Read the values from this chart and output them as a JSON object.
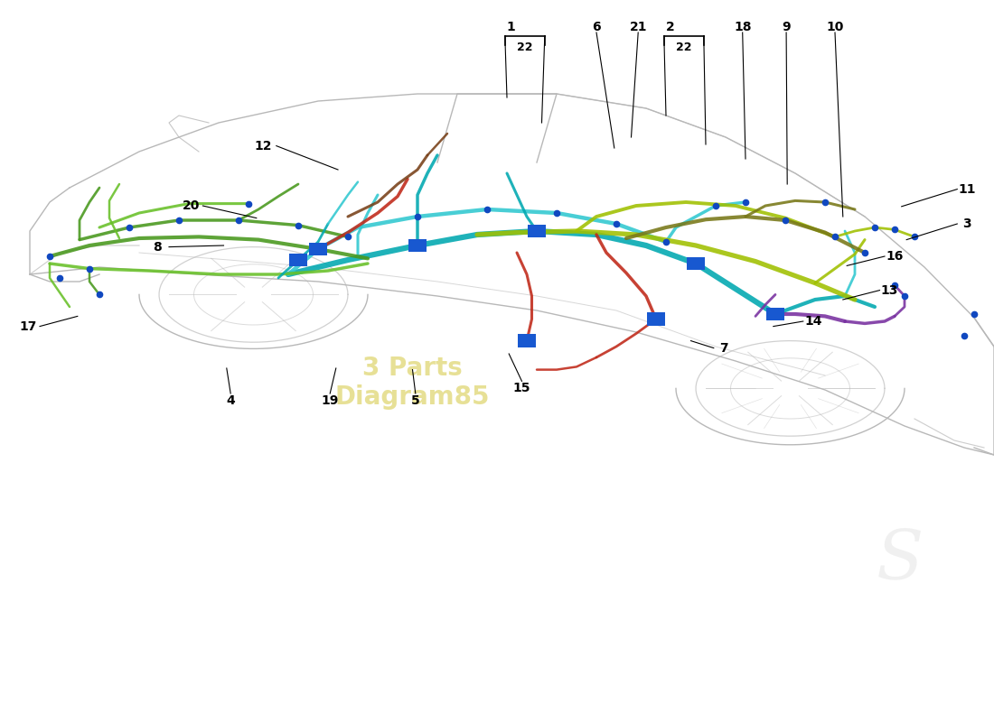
{
  "figure_width": 11.0,
  "figure_height": 8.0,
  "bg_color": "#ffffff",
  "car_outline_color": "#b8b8b8",
  "callout_line_color": "#000000",
  "callout_font_size": 10,
  "watermark_text": "3 Parts\nDiagram85",
  "watermark_color": "#d4c840",
  "watermark_alpha": 0.55,
  "teal": "#00a8b0",
  "teal2": "#30c8d0",
  "green": "#48981c",
  "green2": "#68c028",
  "ygreen": "#a0c000",
  "purple": "#7830a0",
  "red": "#c02818",
  "brown": "#784018",
  "olive": "#787818",
  "blue_dot": "#1048c0",
  "blue_sq": "#1858d0"
}
